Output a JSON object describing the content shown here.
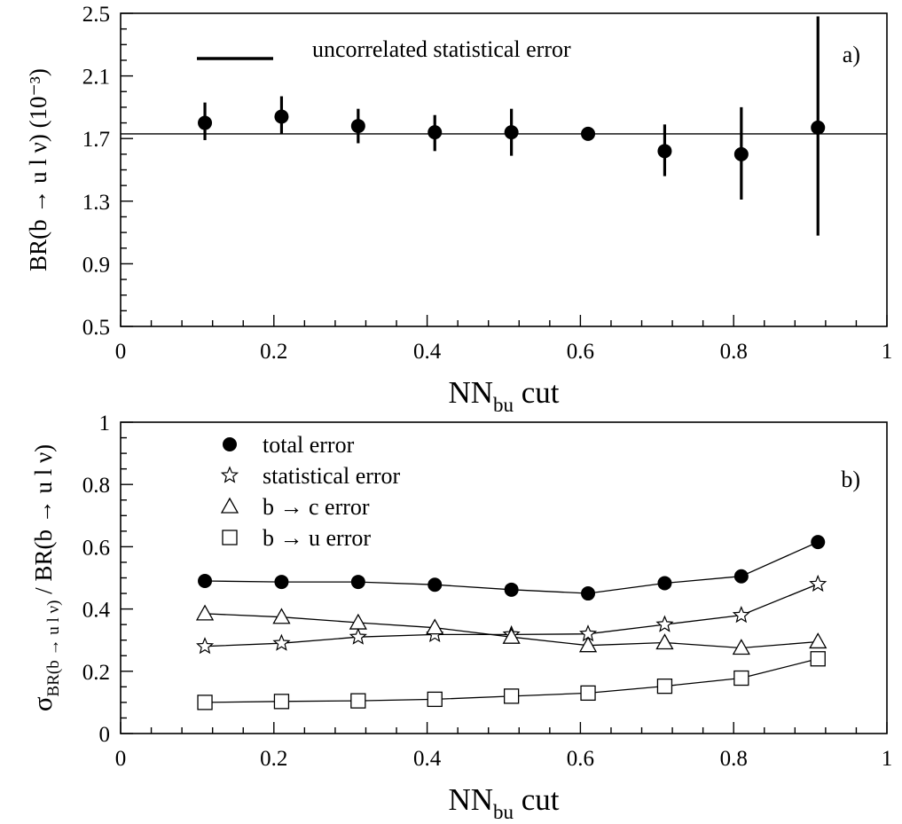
{
  "chart_data": [
    {
      "type": "scatter",
      "panel_label": "a)",
      "ylabel": "BR(b → u l ν)  (10⁻³)",
      "xlabel": {
        "main": "NN",
        "subscript": "bu",
        "suffix": " cut"
      },
      "xlim": [
        0,
        1
      ],
      "ylim": [
        0.5,
        2.5
      ],
      "xticks": [
        {
          "value": 0,
          "label": "0"
        },
        {
          "value": 0.2,
          "label": "0.2"
        },
        {
          "value": 0.4,
          "label": "0.4"
        },
        {
          "value": 0.6,
          "label": "0.6"
        },
        {
          "value": 0.8,
          "label": "0.8"
        },
        {
          "value": 1,
          "label": "1"
        }
      ],
      "yticks": [
        {
          "value": 0.5,
          "label": "0.5"
        },
        {
          "value": 0.9,
          "label": "0.9"
        },
        {
          "value": 1.3,
          "label": "1.3"
        },
        {
          "value": 1.7,
          "label": "1.7"
        },
        {
          "value": 2.1,
          "label": "2.1"
        },
        {
          "value": 2.5,
          "label": "2.5"
        }
      ],
      "reference_line": 1.73,
      "legend": {
        "label": "uncorrelated statistical error",
        "position": "top-left"
      },
      "series": [
        {
          "marker": "filled-circle",
          "x": [
            0.11,
            0.21,
            0.31,
            0.41,
            0.51,
            0.61,
            0.71,
            0.81,
            0.91
          ],
          "y": [
            1.8,
            1.84,
            1.78,
            1.74,
            1.74,
            1.73,
            1.62,
            1.6,
            1.77
          ],
          "err_low": [
            1.69,
            1.73,
            1.67,
            1.62,
            1.59,
            1.73,
            1.46,
            1.31,
            1.08
          ],
          "err_high": [
            1.93,
            1.97,
            1.89,
            1.85,
            1.89,
            1.73,
            1.79,
            1.9,
            2.48
          ]
        }
      ]
    },
    {
      "type": "line",
      "panel_label": "b)",
      "ylabel": {
        "main": "σ",
        "subscript": "BR(b → u l ν)",
        "suffix": " / BR(b → u l ν)"
      },
      "xlabel": {
        "main": "NN",
        "subscript": "bu",
        "suffix": " cut"
      },
      "xlim": [
        0,
        1
      ],
      "ylim": [
        0,
        1
      ],
      "xticks": [
        {
          "value": 0,
          "label": "0"
        },
        {
          "value": 0.2,
          "label": "0.2"
        },
        {
          "value": 0.4,
          "label": "0.4"
        },
        {
          "value": 0.6,
          "label": "0.6"
        },
        {
          "value": 0.8,
          "label": "0.8"
        },
        {
          "value": 1,
          "label": "1"
        }
      ],
      "yticks": [
        {
          "value": 0,
          "label": "0"
        },
        {
          "value": 0.2,
          "label": "0.2"
        },
        {
          "value": 0.4,
          "label": "0.4"
        },
        {
          "value": 0.6,
          "label": "0.6"
        },
        {
          "value": 0.8,
          "label": "0.8"
        },
        {
          "value": 1,
          "label": "1"
        }
      ],
      "legend_position": "top-left",
      "x": [
        0.11,
        0.21,
        0.31,
        0.41,
        0.51,
        0.61,
        0.71,
        0.81,
        0.91
      ],
      "series": [
        {
          "name": "total error",
          "marker": "filled-circle",
          "values": [
            0.49,
            0.487,
            0.487,
            0.478,
            0.462,
            0.45,
            0.483,
            0.505,
            0.615
          ]
        },
        {
          "name": "statistical error",
          "marker": "star",
          "values": [
            0.28,
            0.29,
            0.31,
            0.318,
            0.318,
            0.32,
            0.35,
            0.38,
            0.48
          ]
        },
        {
          "name": "b → c error",
          "marker": "open-triangle",
          "values": [
            0.385,
            0.374,
            0.356,
            0.34,
            0.31,
            0.283,
            0.292,
            0.275,
            0.295
          ]
        },
        {
          "name": "b → u error",
          "marker": "open-square",
          "values": [
            0.1,
            0.103,
            0.105,
            0.11,
            0.12,
            0.13,
            0.152,
            0.178,
            0.24
          ]
        }
      ]
    }
  ]
}
